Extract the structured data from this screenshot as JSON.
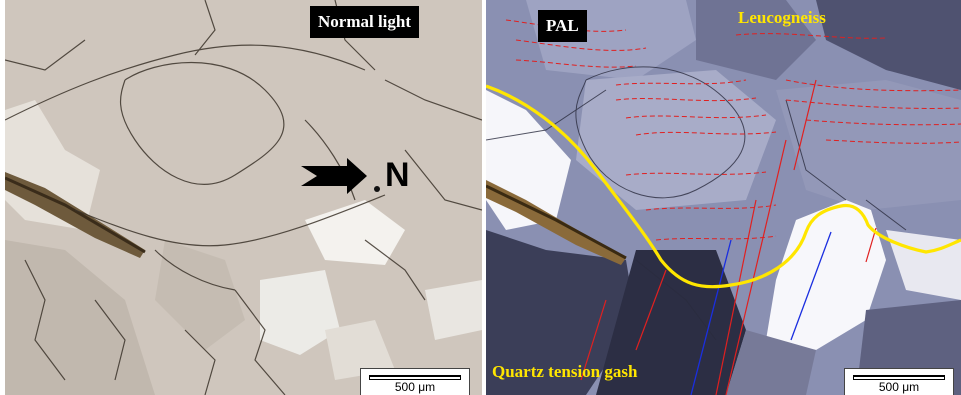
{
  "left_panel": {
    "label": "Normal light",
    "marker_letter": "N",
    "scale_text": "500 μm"
  },
  "right_panel": {
    "label": "PAL",
    "annotation_top": "Leucogneiss",
    "annotation_bottom": "Quartz tension gash",
    "scale_text": "500 μm"
  },
  "colors": {
    "boundary": "#ffe600",
    "foliation": "#e02020",
    "fracture": "#1a2ee0",
    "label_bg": "#000000"
  }
}
